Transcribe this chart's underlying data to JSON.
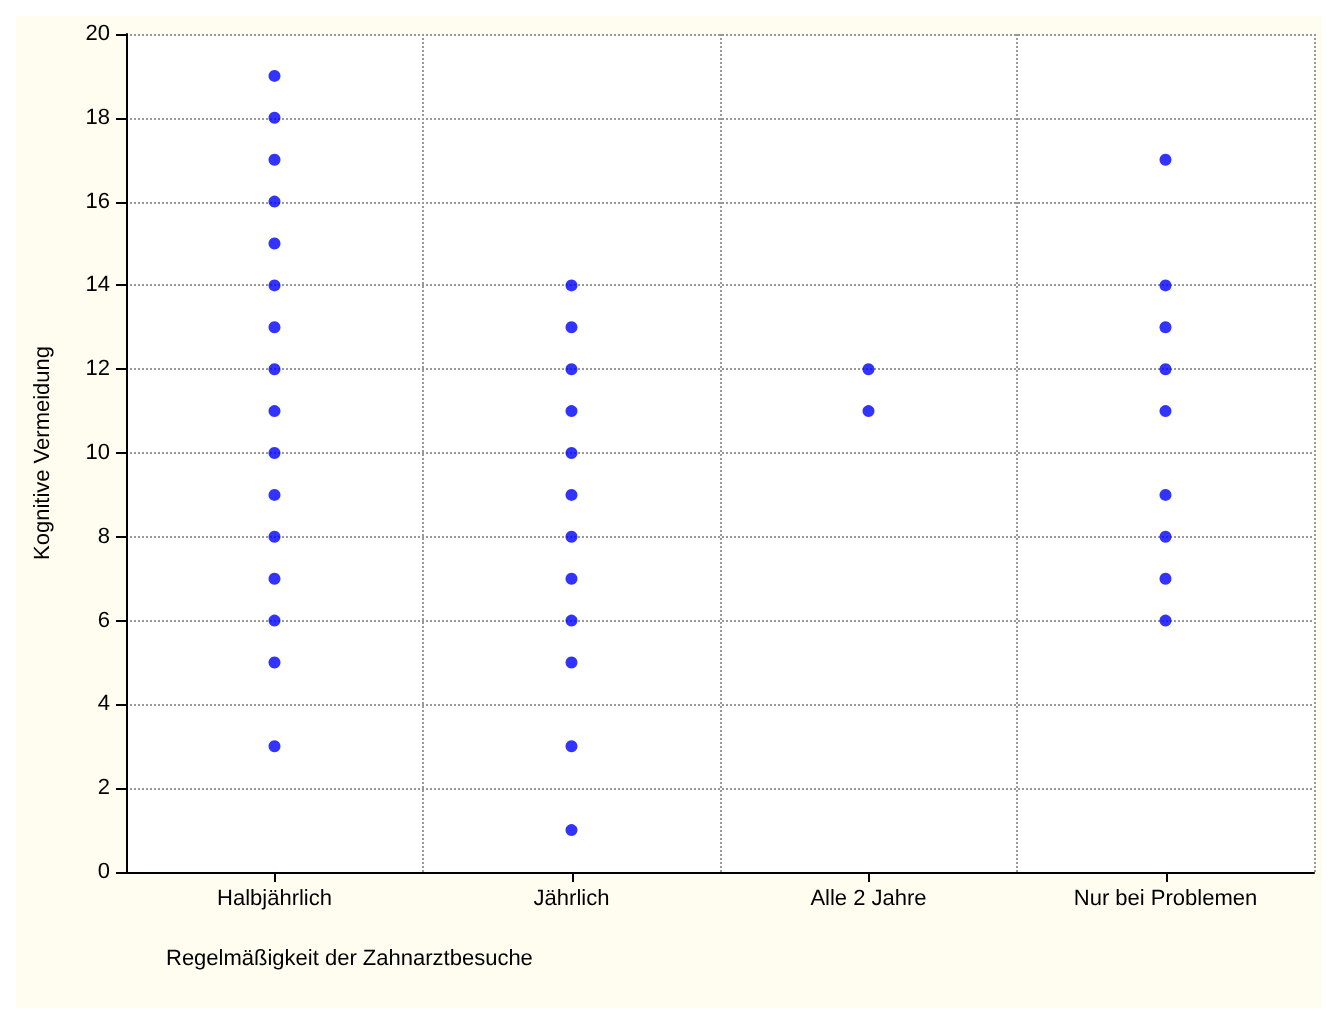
{
  "chart_data": {
    "type": "scatter",
    "xlabel": "Regelmäßigkeit der Zahnarztbesuche",
    "ylabel": "Kognitive Vermeidung",
    "categories": [
      "Halbjährlich",
      "Jährlich",
      "Alle 2 Jahre",
      "Nur bei Problemen"
    ],
    "series": [
      {
        "color": "#0000ff",
        "x": [
          "Halbjährlich",
          "Halbjährlich",
          "Halbjährlich",
          "Halbjährlich",
          "Halbjährlich",
          "Halbjährlich",
          "Halbjährlich",
          "Halbjährlich",
          "Halbjährlich",
          "Halbjährlich",
          "Halbjährlich",
          "Halbjährlich",
          "Halbjährlich",
          "Halbjährlich",
          "Halbjährlich",
          "Halbjährlich",
          "Jährlich",
          "Jährlich",
          "Jährlich",
          "Jährlich",
          "Jährlich",
          "Jährlich",
          "Jährlich",
          "Jährlich",
          "Jährlich",
          "Jährlich",
          "Jährlich",
          "Jährlich",
          "Alle 2 Jahre",
          "Alle 2 Jahre",
          "Nur bei Problemen",
          "Nur bei Problemen",
          "Nur bei Problemen",
          "Nur bei Problemen",
          "Nur bei Problemen",
          "Nur bei Problemen",
          "Nur bei Problemen",
          "Nur bei Problemen",
          "Nur bei Problemen"
        ],
        "values": [
          3,
          5,
          6,
          7,
          8,
          9,
          10,
          11,
          12,
          13,
          14,
          15,
          16,
          17,
          18,
          19,
          1,
          3,
          5,
          6,
          7,
          8,
          9,
          10,
          11,
          12,
          13,
          14,
          11,
          12,
          6,
          7,
          8,
          9,
          11,
          12,
          13,
          14,
          17
        ]
      }
    ],
    "ylim": [
      0,
      20
    ],
    "yticks": [
      0,
      2,
      4,
      6,
      8,
      10,
      12,
      14,
      16,
      18,
      20
    ],
    "grid": true,
    "marker": "circle"
  }
}
